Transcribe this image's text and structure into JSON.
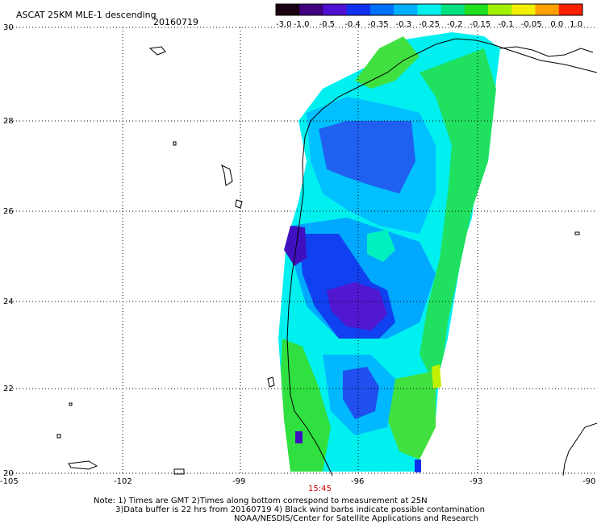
{
  "header": {
    "title": "ASCAT 25KM MLE-1 descending",
    "date": "20160719"
  },
  "colorbar": {
    "labels": [
      "-3.0",
      "-1.0",
      "-0.5",
      "-0.4",
      "-0.35",
      "-0.3",
      "-0.25",
      "-0.2",
      "-0.15",
      "-0.1",
      "-0.05",
      "0.0",
      "1.0"
    ],
    "colors": [
      "#1a0010",
      "#400080",
      "#5010d0",
      "#1030f0",
      "#0070ff",
      "#00b0ff",
      "#00f0f0",
      "#00e080",
      "#20e020",
      "#a0f000",
      "#f0f000",
      "#ffa000",
      "#ff2000"
    ]
  },
  "axes": {
    "lon_ticks": [
      "-105",
      "-102",
      "-99",
      "-96",
      "-93",
      "-90"
    ],
    "lat_ticks": [
      "30",
      "28",
      "26",
      "24",
      "22",
      "20"
    ]
  },
  "time_label": "15:45",
  "notes": [
    "Note: 1) Times are GMT 2)Times along bottom correspond to measurement at 25N",
    "3)Data buffer is 22 hrs from 20160719 4) Black wind barbs indicate possible contamination",
    "NOAA/NESDIS/Center for Satellite Applications and Research"
  ]
}
